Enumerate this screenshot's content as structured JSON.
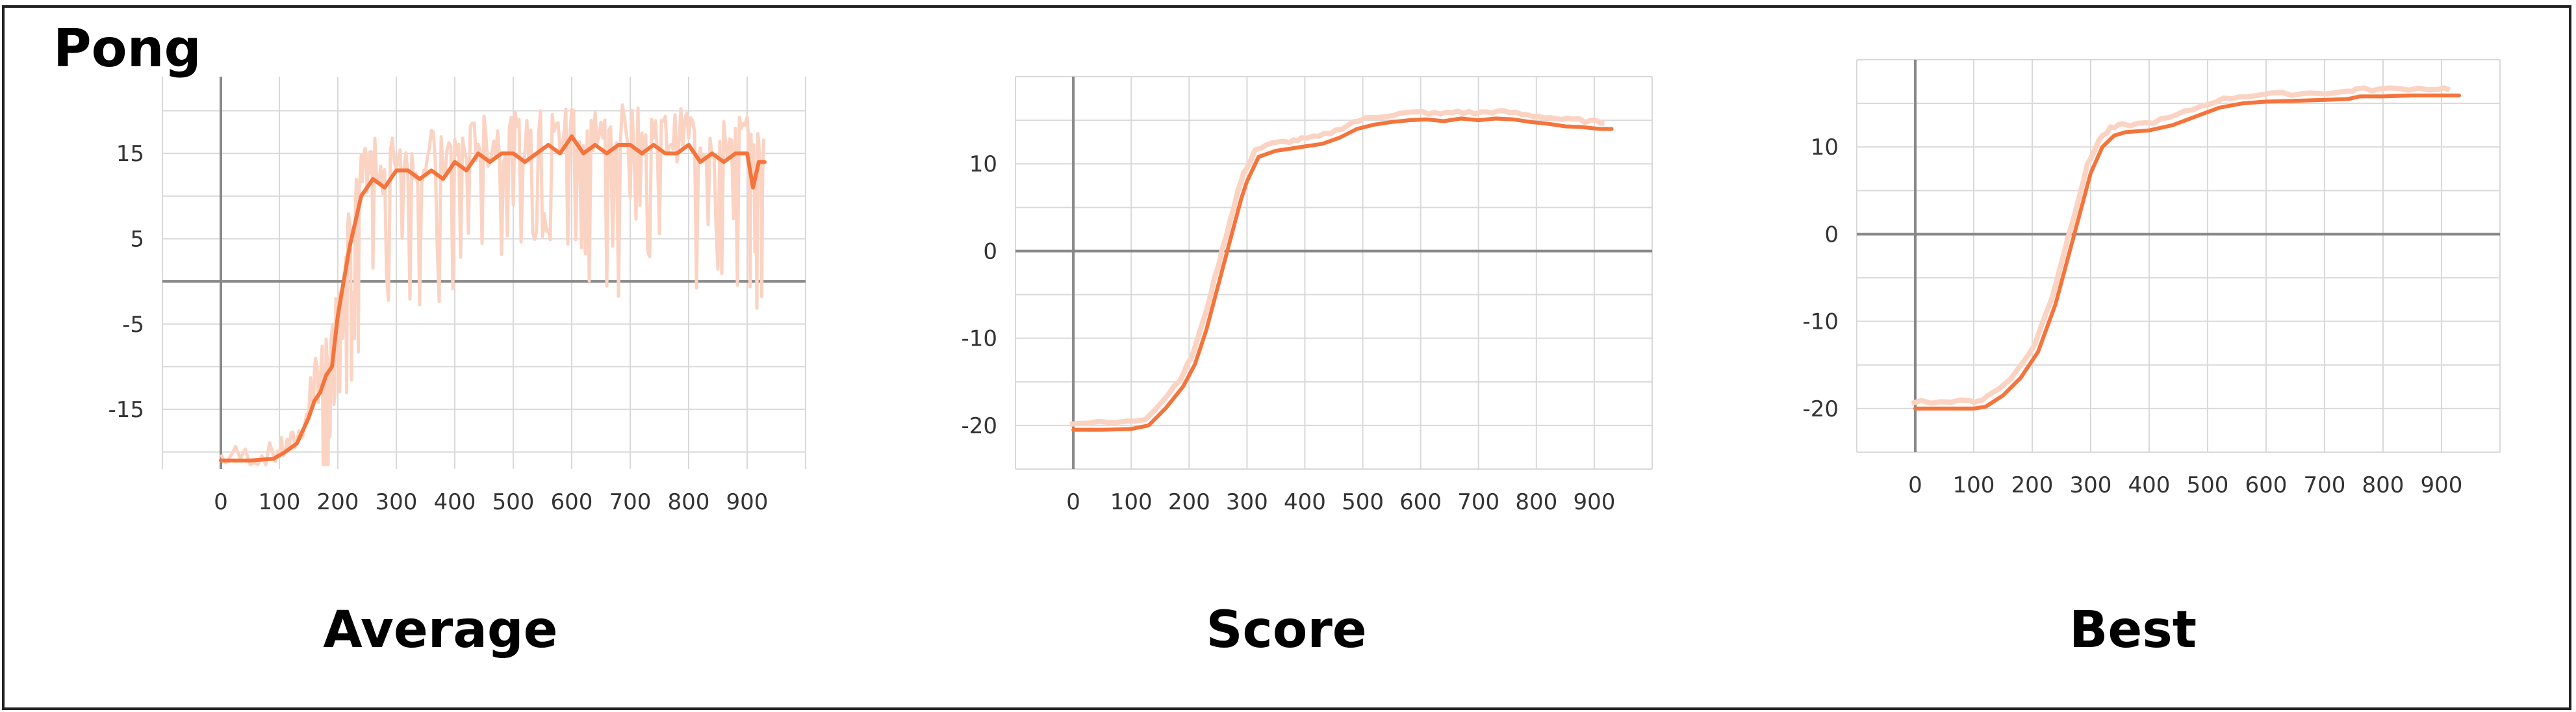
{
  "figure_title": "Pong",
  "colors": {
    "line": "#f4743b",
    "raw": "#fbd3c3",
    "grid": "#d9d9d9",
    "axis": "#888888"
  },
  "chart_data": [
    {
      "type": "line",
      "title": "Average",
      "xlim": [
        -100,
        1000
      ],
      "ylim": [
        -22,
        24
      ],
      "xticks": [
        0,
        100,
        200,
        300,
        400,
        500,
        600,
        700,
        800,
        900
      ],
      "yticks": [
        -15,
        -5,
        5,
        15
      ],
      "grid": true,
      "series": [
        {
          "x": [
            0,
            50,
            90,
            110,
            130,
            150,
            160,
            170,
            180,
            190,
            200,
            210,
            220,
            230,
            240,
            250,
            260,
            280,
            300,
            320,
            340,
            360,
            380,
            400,
            420,
            440,
            460,
            480,
            500,
            520,
            540,
            560,
            580,
            600,
            620,
            640,
            660,
            680,
            700,
            720,
            740,
            760,
            780,
            800,
            820,
            840,
            860,
            880,
            900,
            910,
            920,
            930
          ],
          "y": [
            -21,
            -21,
            -20.8,
            -20,
            -19,
            -16,
            -14,
            -13,
            -11,
            -10,
            -4,
            0,
            4,
            7,
            10,
            11,
            12,
            11,
            13,
            13,
            12,
            13,
            12,
            14,
            13,
            15,
            14,
            15,
            15,
            14,
            15,
            16,
            15,
            17,
            15,
            16,
            15,
            16,
            16,
            15,
            16,
            15,
            15,
            16,
            14,
            15,
            14,
            15,
            15,
            11,
            14,
            14
          ]
        }
      ]
    },
    {
      "type": "line",
      "title": "Score",
      "xlim": [
        -100,
        1000
      ],
      "ylim": [
        -25,
        20
      ],
      "xticks": [
        0,
        100,
        200,
        300,
        400,
        500,
        600,
        700,
        800,
        900
      ],
      "yticks": [
        -20,
        -10,
        0,
        10
      ],
      "grid": true,
      "series": [
        {
          "x": [
            0,
            50,
            100,
            130,
            160,
            190,
            210,
            230,
            250,
            270,
            290,
            300,
            320,
            350,
            380,
            400,
            430,
            460,
            490,
            520,
            550,
            580,
            610,
            640,
            670,
            700,
            730,
            760,
            790,
            820,
            850,
            880,
            910,
            930
          ],
          "y": [
            -20.5,
            -20.5,
            -20.4,
            -20,
            -18,
            -15.5,
            -13,
            -9,
            -4,
            1,
            6,
            8,
            10.8,
            11.5,
            11.8,
            12,
            12.3,
            13,
            14,
            14.5,
            14.8,
            15,
            15.1,
            14.9,
            15.2,
            15,
            15.2,
            15.1,
            14.8,
            14.6,
            14.3,
            14.2,
            14,
            14
          ]
        }
      ]
    },
    {
      "type": "line",
      "title": "Best",
      "xlim": [
        -100,
        1000
      ],
      "ylim": [
        -25,
        20
      ],
      "xticks": [
        0,
        100,
        200,
        300,
        400,
        500,
        600,
        700,
        800,
        900
      ],
      "yticks": [
        -20,
        -10,
        0,
        10
      ],
      "grid": true,
      "series": [
        {
          "x": [
            0,
            50,
            100,
            120,
            150,
            180,
            210,
            240,
            260,
            280,
            300,
            320,
            340,
            360,
            400,
            440,
            480,
            520,
            560,
            600,
            650,
            700,
            740,
            760,
            800,
            850,
            900,
            930
          ],
          "y": [
            -20,
            -20,
            -20,
            -19.8,
            -18.5,
            -16.5,
            -13.5,
            -8,
            -3,
            2,
            7,
            10,
            11.3,
            11.7,
            11.9,
            12.5,
            13.5,
            14.5,
            15,
            15.2,
            15.3,
            15.4,
            15.5,
            15.8,
            15.8,
            15.9,
            15.9,
            15.9
          ]
        }
      ]
    }
  ]
}
